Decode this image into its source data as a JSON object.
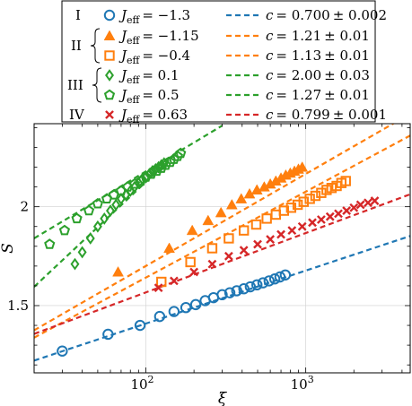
{
  "chart_data": {
    "type": "scatter",
    "xscale": "log",
    "xlim": [
      20,
      4500
    ],
    "ylim": [
      1.16,
      2.42
    ],
    "xlabel": "ξ",
    "ylabel": "S",
    "grid": true,
    "legend_position": "top",
    "xticks": [
      {
        "value": 100,
        "label": "10",
        "exp": "2"
      },
      {
        "value": 1000,
        "label": "10",
        "exp": "3"
      }
    ],
    "yticks": [
      {
        "value": 1.5,
        "label": "1.5"
      },
      {
        "value": 2.0,
        "label": "2"
      }
    ],
    "groups": [
      {
        "label": "I"
      },
      {
        "label": "II"
      },
      {
        "label": "III"
      },
      {
        "label": "IV"
      }
    ],
    "series": [
      {
        "name": "J_eff = −1.3",
        "sym": "J",
        "sub": "eff",
        "val": "= −1.3",
        "group": "I",
        "marker": "circle",
        "color": "#1f77b4",
        "x": [
          30,
          58,
          92,
          122,
          150,
          178,
          205,
          235,
          265,
          300,
          335,
          370,
          410,
          450,
          495,
          540,
          590,
          640,
          690,
          745
        ],
        "y": [
          1.27,
          1.355,
          1.4,
          1.445,
          1.47,
          1.49,
          1.505,
          1.525,
          1.54,
          1.555,
          1.565,
          1.575,
          1.585,
          1.595,
          1.605,
          1.615,
          1.625,
          1.635,
          1.645,
          1.655
        ],
        "fit": {
          "label": "c = 0.700 ± 0.002",
          "c": "0.700",
          "err": "0.002",
          "x": [
            20,
            4500
          ],
          "y": [
            1.222,
            1.852
          ]
        }
      },
      {
        "name": "J_eff = −1.15",
        "sym": "J",
        "sub": "eff",
        "val": "= −1.15",
        "group": "II",
        "marker": "triangle",
        "color": "#ff7f0e",
        "x": [
          67,
          140,
          195,
          245,
          295,
          345,
          395,
          445,
          495,
          550,
          600,
          650,
          700,
          750,
          800,
          850,
          900,
          950
        ],
        "y": [
          1.67,
          1.79,
          1.88,
          1.93,
          1.97,
          2.01,
          2.04,
          2.065,
          2.085,
          2.1,
          2.115,
          2.13,
          2.145,
          2.16,
          2.17,
          2.18,
          2.19,
          2.2
        ],
        "fit": {
          "label": "c = 1.21 ± 0.01",
          "c": "1.21",
          "err": "0.01",
          "x": [
            20,
            4500
          ],
          "y": [
            1.375,
            2.47
          ]
        }
      },
      {
        "name": "J_eff = −0.4",
        "sym": "J",
        "sub": "eff",
        "val": "= −0.4",
        "group": "II",
        "marker": "square",
        "color": "#ff7f0e",
        "x": [
          125,
          190,
          260,
          330,
          410,
          490,
          570,
          650,
          730,
          810,
          890,
          970,
          1060,
          1150,
          1250,
          1350,
          1450,
          1560,
          1670,
          1780
        ],
        "y": [
          1.62,
          1.72,
          1.79,
          1.84,
          1.88,
          1.91,
          1.94,
          1.96,
          1.98,
          1.995,
          2.01,
          2.025,
          2.04,
          2.055,
          2.07,
          2.085,
          2.095,
          2.105,
          2.12,
          2.13
        ],
        "fit": {
          "label": "c = 1.13 ± 0.01",
          "c": "1.13",
          "err": "0.01",
          "x": [
            20,
            4500
          ],
          "y": [
            1.338,
            2.36
          ]
        }
      },
      {
        "name": "J_eff = 0.1",
        "sym": "J",
        "sub": "eff",
        "val": "= 0.1",
        "group": "III",
        "marker": "diamond",
        "color": "#2ca02c",
        "x": [
          36,
          40,
          45,
          50,
          55,
          60,
          65,
          70,
          75,
          80,
          85,
          90,
          95,
          100,
          105,
          110,
          115,
          120,
          125,
          130
        ],
        "y": [
          1.71,
          1.77,
          1.84,
          1.9,
          1.94,
          1.98,
          2.01,
          2.04,
          2.06,
          2.08,
          2.1,
          2.12,
          2.14,
          2.15,
          2.165,
          2.18,
          2.19,
          2.2,
          2.21,
          2.22
        ],
        "fit": {
          "label": "c = 2.00 ± 0.03",
          "c": "2.00",
          "err": "0.03",
          "x": [
            20,
            160
          ],
          "y": [
            1.595,
            2.28
          ]
        }
      },
      {
        "name": "J_eff = 0.5",
        "sym": "J",
        "sub": "eff",
        "val": "= 0.5",
        "group": "III",
        "marker": "pentagon",
        "color": "#2ca02c",
        "x": [
          25,
          31,
          37,
          44,
          50,
          57,
          63,
          70,
          77,
          85,
          93,
          100,
          108,
          117,
          125,
          133,
          142,
          150,
          158,
          165
        ],
        "y": [
          1.81,
          1.88,
          1.94,
          1.98,
          2.015,
          2.04,
          2.06,
          2.08,
          2.1,
          2.115,
          2.13,
          2.15,
          2.165,
          2.18,
          2.195,
          2.21,
          2.225,
          2.24,
          2.255,
          2.27
        ],
        "fit": {
          "label": "c = 1.27 ± 0.01",
          "c": "1.27",
          "err": "0.01",
          "x": [
            20,
            300
          ],
          "y": [
            1.84,
            2.41
          ]
        }
      },
      {
        "name": "J_eff = 0.63",
        "sym": "J",
        "sub": "eff",
        "val": "= 0.63",
        "group": "IV",
        "marker": "cross",
        "color": "#d62728",
        "x": [
          120,
          150,
          200,
          260,
          330,
          410,
          500,
          600,
          700,
          820,
          950,
          1100,
          1250,
          1420,
          1600,
          1800,
          2000,
          2200,
          2450,
          2700
        ],
        "y": [
          1.59,
          1.625,
          1.67,
          1.71,
          1.75,
          1.78,
          1.81,
          1.835,
          1.86,
          1.88,
          1.9,
          1.92,
          1.935,
          1.95,
          1.965,
          1.98,
          1.995,
          2.01,
          2.02,
          2.03
        ],
        "fit": {
          "label": "c = 0.799 ± 0.001",
          "c": "0.799",
          "err": "0.001",
          "x": [
            20,
            4500
          ],
          "y": [
            1.357,
            2.063
          ]
        }
      }
    ]
  }
}
